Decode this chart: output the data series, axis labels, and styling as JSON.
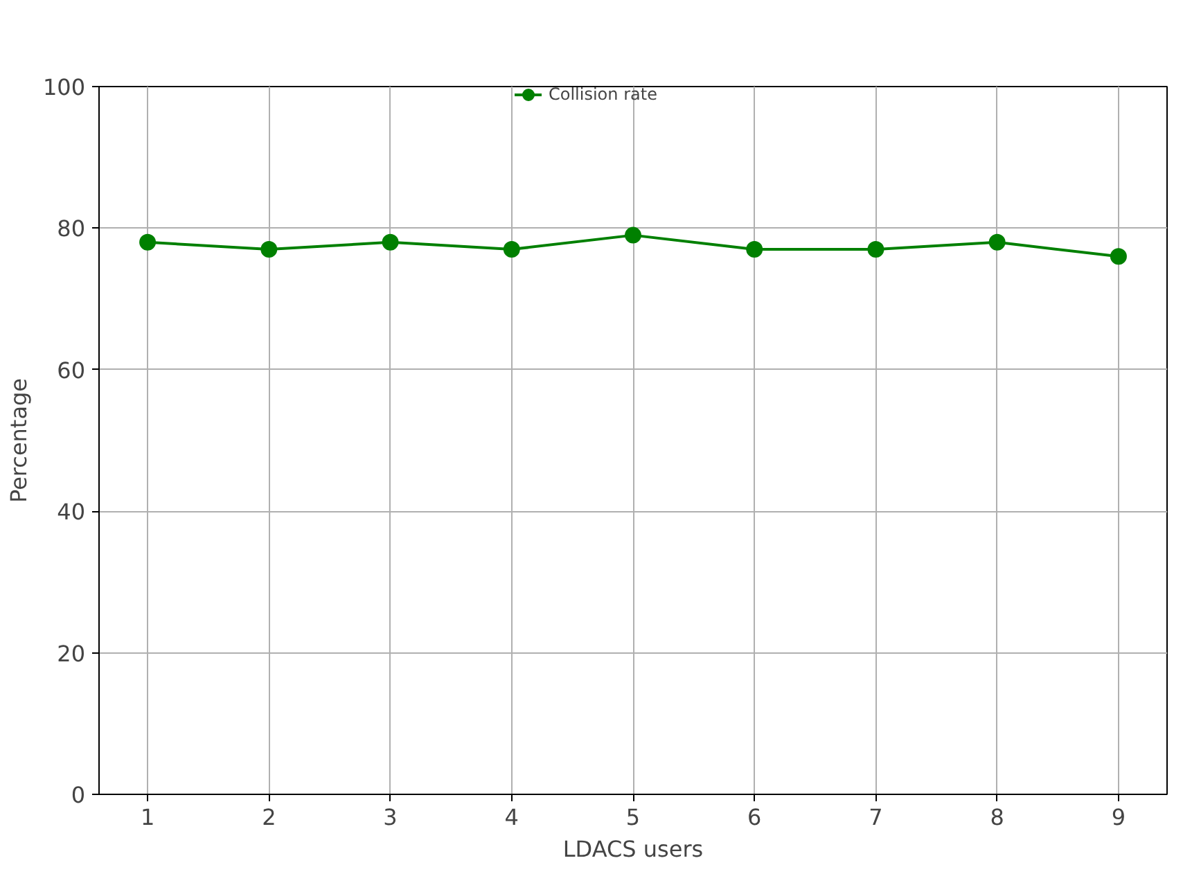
{
  "chart_data": {
    "type": "line",
    "xlabel": "LDACS users",
    "ylabel": "Percentage",
    "x": [
      1,
      2,
      3,
      4,
      5,
      6,
      7,
      8,
      9
    ],
    "series": [
      {
        "name": "Collision rate",
        "color": "#008000",
        "values": [
          78,
          77,
          78,
          77,
          79,
          77,
          77,
          78,
          76
        ]
      }
    ],
    "xlim": [
      0.6,
      9.4
    ],
    "xticks": [
      1,
      2,
      3,
      4,
      5,
      6,
      7,
      8,
      9
    ],
    "ylim": [
      0,
      100
    ],
    "yticks": [
      0,
      20,
      40,
      60,
      80,
      100
    ],
    "grid": true,
    "legend": "top",
    "marker": "circle",
    "line_style": "solid"
  }
}
